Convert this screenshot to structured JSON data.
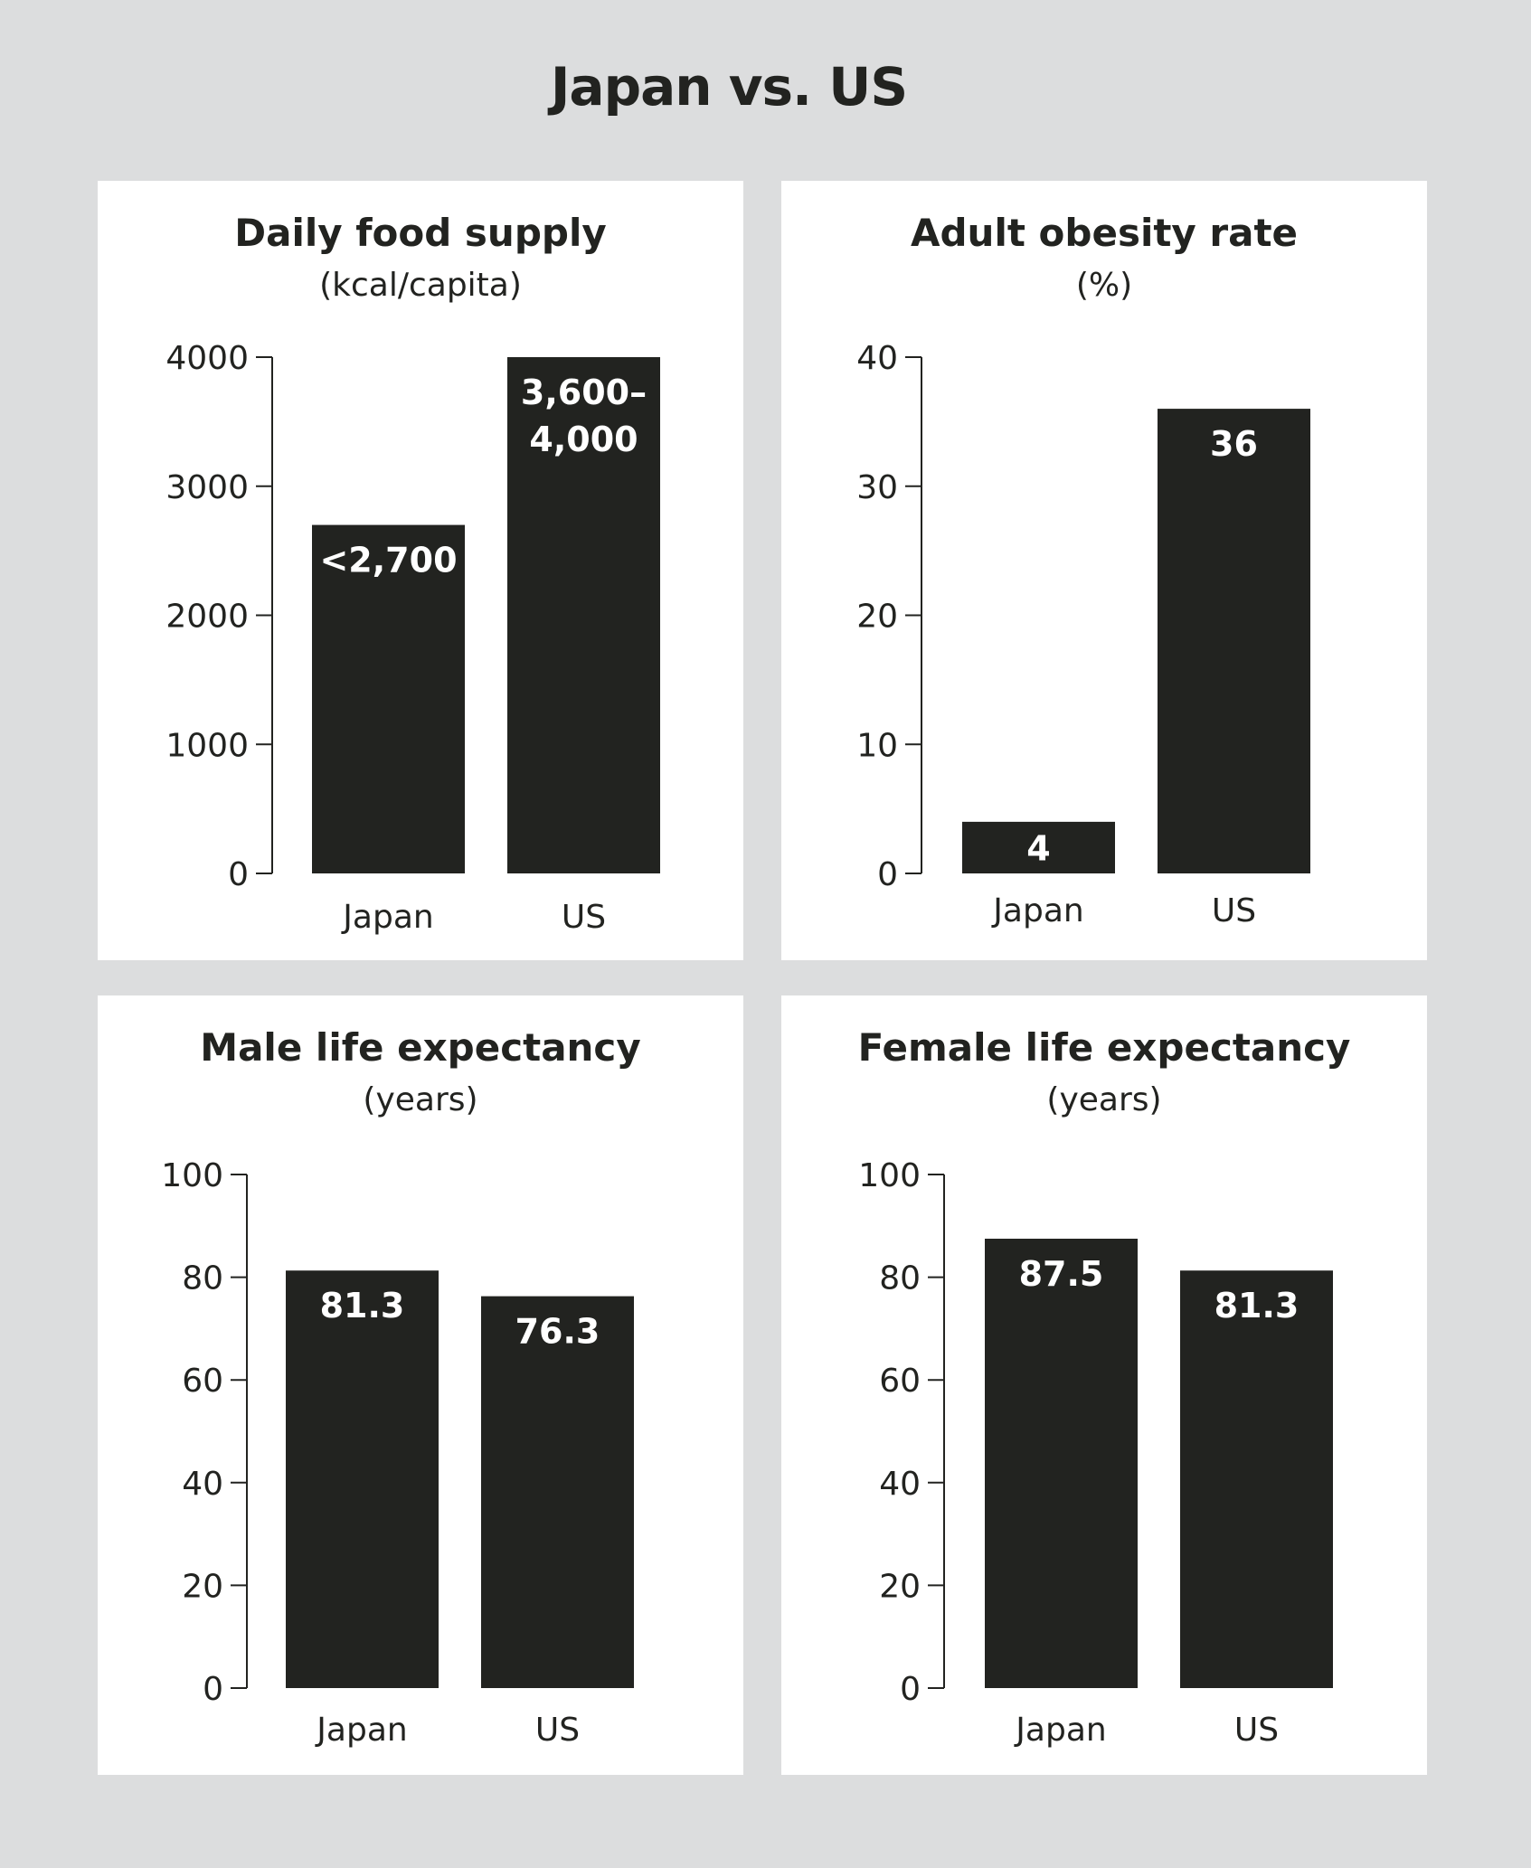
{
  "page": {
    "title": "Japan vs. US"
  },
  "colors": {
    "background": "#dcddde",
    "panel": "#ffffff",
    "bar": "#222320",
    "bar_text": "#ffffff"
  },
  "chart_data": [
    {
      "type": "bar",
      "title": "Daily food supply",
      "subtitle": "(kcal/capita)",
      "categories": [
        "Japan",
        "US"
      ],
      "values": [
        2700,
        4000
      ],
      "labels": [
        "<2,700",
        "3,600–4,000"
      ],
      "ylim": [
        0,
        4000
      ],
      "yticks": [
        0,
        1000,
        2000,
        3000,
        4000
      ],
      "ytick_labels": [
        "0",
        "1000",
        "2000",
        "3000",
        "4000"
      ],
      "grid": false
    },
    {
      "type": "bar",
      "title": "Adult obesity rate",
      "subtitle": "(%)",
      "categories": [
        "Japan",
        "US"
      ],
      "values": [
        4,
        36
      ],
      "labels": [
        "4",
        "36"
      ],
      "ylim": [
        0,
        40
      ],
      "yticks": [
        0,
        10,
        20,
        30,
        40
      ],
      "ytick_labels": [
        "0",
        "10",
        "20",
        "30",
        "40"
      ],
      "grid": false
    },
    {
      "type": "bar",
      "title": "Male life expectancy",
      "subtitle": "(years)",
      "categories": [
        "Japan",
        "US"
      ],
      "values": [
        81.3,
        76.3
      ],
      "labels": [
        "81.3",
        "76.3"
      ],
      "ylim": [
        0,
        100
      ],
      "yticks": [
        0,
        20,
        40,
        60,
        80,
        100
      ],
      "ytick_labels": [
        "0",
        "20",
        "40",
        "60",
        "80",
        "100"
      ],
      "grid": false
    },
    {
      "type": "bar",
      "title": "Female life expectancy",
      "subtitle": "(years)",
      "categories": [
        "Japan",
        "US"
      ],
      "values": [
        87.5,
        81.3
      ],
      "labels": [
        "87.5",
        "81.3"
      ],
      "ylim": [
        0,
        100
      ],
      "yticks": [
        0,
        20,
        40,
        60,
        80,
        100
      ],
      "ytick_labels": [
        "0",
        "20",
        "40",
        "60",
        "80",
        "100"
      ],
      "grid": false
    }
  ]
}
